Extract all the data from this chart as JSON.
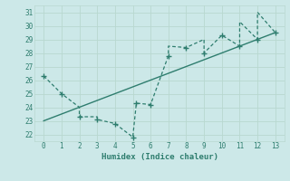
{
  "x_line": [
    0,
    1,
    2,
    2,
    3,
    3,
    4,
    5,
    5.2,
    6,
    7,
    7,
    8,
    9,
    9,
    10,
    11,
    11,
    12,
    12,
    13
  ],
  "y_line": [
    26.3,
    25.0,
    24.0,
    23.3,
    23.3,
    23.1,
    22.8,
    21.8,
    24.3,
    24.2,
    27.8,
    28.5,
    28.4,
    29.0,
    28.0,
    29.3,
    28.5,
    30.3,
    29.0,
    31.0,
    29.5
  ],
  "markers_x": [
    0,
    1,
    2,
    3,
    4,
    5,
    5.2,
    6,
    7,
    8,
    9,
    10,
    11,
    12,
    13
  ],
  "markers_y": [
    26.3,
    25.0,
    23.3,
    23.1,
    22.8,
    21.8,
    24.3,
    24.2,
    27.8,
    28.4,
    28.0,
    29.3,
    28.5,
    29.0,
    29.5
  ],
  "trend_x": [
    0,
    13
  ],
  "trend_y": [
    23.0,
    29.5
  ],
  "line_color": "#2e7d6e",
  "bg_color": "#cce8e8",
  "grid_color_major": "#b8d8d0",
  "grid_color_minor": "#d4e8e4",
  "xlabel": "Humidex (Indice chaleur)",
  "ylim": [
    21.5,
    31.5
  ],
  "xlim": [
    -0.5,
    13.5
  ],
  "yticks": [
    22,
    23,
    24,
    25,
    26,
    27,
    28,
    29,
    30,
    31
  ],
  "xticks": [
    0,
    1,
    2,
    3,
    4,
    5,
    6,
    7,
    8,
    9,
    10,
    11,
    12,
    13
  ]
}
